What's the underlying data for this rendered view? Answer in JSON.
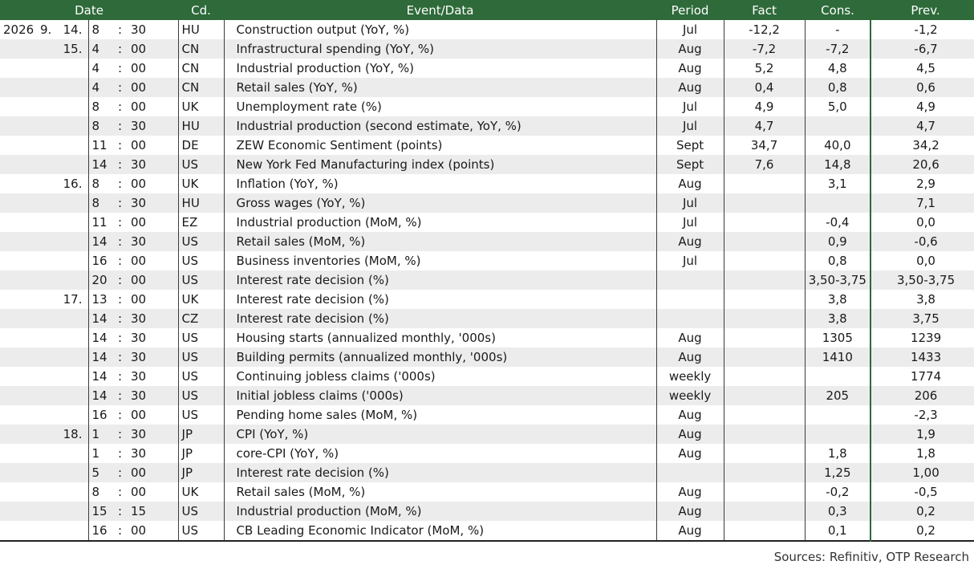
{
  "header": {
    "date": "Date",
    "code": "Cd.",
    "event": "Event/Data",
    "period": "Period",
    "fact": "Fact",
    "cons": "Cons.",
    "prev": "Prev."
  },
  "rows": [
    {
      "year": "2026",
      "month": "9.",
      "day": "14.",
      "hour": "8",
      "colon": ":",
      "minute": "30",
      "code": "HU",
      "event": "Construction output (YoY, %)",
      "period": "Jul",
      "fact": "-12,2",
      "cons": "-",
      "prev": "-1,2"
    },
    {
      "year": "",
      "month": "",
      "day": "15.",
      "hour": "4",
      "colon": ":",
      "minute": "00",
      "code": "CN",
      "event": "Infrastructural spending (YoY, %)",
      "period": "Aug",
      "fact": "-7,2",
      "cons": "-7,2",
      "prev": "-6,7"
    },
    {
      "year": "",
      "month": "",
      "day": "",
      "hour": "4",
      "colon": ":",
      "minute": "00",
      "code": "CN",
      "event": "Industrial production (YoY, %)",
      "period": "Aug",
      "fact": "5,2",
      "cons": "4,8",
      "prev": "4,5"
    },
    {
      "year": "",
      "month": "",
      "day": "",
      "hour": "4",
      "colon": ":",
      "minute": "00",
      "code": "CN",
      "event": "Retail sales (YoY, %)",
      "period": "Aug",
      "fact": "0,4",
      "cons": "0,8",
      "prev": "0,6"
    },
    {
      "year": "",
      "month": "",
      "day": "",
      "hour": "8",
      "colon": ":",
      "minute": "00",
      "code": "UK",
      "event": "Unemployment rate (%)",
      "period": "Jul",
      "fact": "4,9",
      "cons": "5,0",
      "prev": "4,9"
    },
    {
      "year": "",
      "month": "",
      "day": "",
      "hour": "8",
      "colon": ":",
      "minute": "30",
      "code": "HU",
      "event": "Industrial production (second estimate, YoY, %)",
      "period": "Jul",
      "fact": "4,7",
      "cons": "",
      "prev": "4,7"
    },
    {
      "year": "",
      "month": "",
      "day": "",
      "hour": "11",
      "colon": ":",
      "minute": "00",
      "code": "DE",
      "event": "ZEW Economic Sentiment (points)",
      "period": "Sept",
      "fact": "34,7",
      "cons": "40,0",
      "prev": "34,2"
    },
    {
      "year": "",
      "month": "",
      "day": "",
      "hour": "14",
      "colon": ":",
      "minute": "30",
      "code": "US",
      "event": "New York Fed Manufacturing index (points)",
      "period": "Sept",
      "fact": "7,6",
      "cons": "14,8",
      "prev": "20,6"
    },
    {
      "year": "",
      "month": "",
      "day": "16.",
      "hour": "8",
      "colon": ":",
      "minute": "00",
      "code": "UK",
      "event": "Inflation (YoY, %)",
      "period": "Aug",
      "fact": "",
      "cons": "3,1",
      "prev": "2,9"
    },
    {
      "year": "",
      "month": "",
      "day": "",
      "hour": "8",
      "colon": ":",
      "minute": "30",
      "code": "HU",
      "event": "Gross wages (YoY, %)",
      "period": "Jul",
      "fact": "",
      "cons": "",
      "prev": "7,1"
    },
    {
      "year": "",
      "month": "",
      "day": "",
      "hour": "11",
      "colon": ":",
      "minute": "00",
      "code": "EZ",
      "event": "Industrial production (MoM, %)",
      "period": "Jul",
      "fact": "",
      "cons": "-0,4",
      "prev": "0,0"
    },
    {
      "year": "",
      "month": "",
      "day": "",
      "hour": "14",
      "colon": ":",
      "minute": "30",
      "code": "US",
      "event": "Retail sales (MoM, %)",
      "period": "Aug",
      "fact": "",
      "cons": "0,9",
      "prev": "-0,6"
    },
    {
      "year": "",
      "month": "",
      "day": "",
      "hour": "16",
      "colon": ":",
      "minute": "00",
      "code": "US",
      "event": "Business inventories (MoM, %)",
      "period": "Jul",
      "fact": "",
      "cons": "0,8",
      "prev": "0,0"
    },
    {
      "year": "",
      "month": "",
      "day": "",
      "hour": "20",
      "colon": ":",
      "minute": "00",
      "code": "US",
      "event": "Interest rate decision (%)",
      "period": "",
      "fact": "",
      "cons": "3,50-3,75",
      "prev": "3,50-3,75"
    },
    {
      "year": "",
      "month": "",
      "day": "17.",
      "hour": "13",
      "colon": ":",
      "minute": "00",
      "code": "UK",
      "event": "Interest rate decision (%)",
      "period": "",
      "fact": "",
      "cons": "3,8",
      "prev": "3,8"
    },
    {
      "year": "",
      "month": "",
      "day": "",
      "hour": "14",
      "colon": ":",
      "minute": "30",
      "code": "CZ",
      "event": "Interest rate decision (%)",
      "period": "",
      "fact": "",
      "cons": "3,8",
      "prev": "3,75"
    },
    {
      "year": "",
      "month": "",
      "day": "",
      "hour": "14",
      "colon": ":",
      "minute": "30",
      "code": "US",
      "event": "Housing starts (annualized monthly, '000s)",
      "period": "Aug",
      "fact": "",
      "cons": "1305",
      "prev": "1239"
    },
    {
      "year": "",
      "month": "",
      "day": "",
      "hour": "14",
      "colon": ":",
      "minute": "30",
      "code": "US",
      "event": "Building permits (annualized monthly, '000s)",
      "period": "Aug",
      "fact": "",
      "cons": "1410",
      "prev": "1433"
    },
    {
      "year": "",
      "month": "",
      "day": "",
      "hour": "14",
      "colon": ":",
      "minute": "30",
      "code": "US",
      "event": "Continuing jobless claims ('000s)",
      "period": "weekly",
      "fact": "",
      "cons": "",
      "prev": "1774"
    },
    {
      "year": "",
      "month": "",
      "day": "",
      "hour": "14",
      "colon": ":",
      "minute": "30",
      "code": "US",
      "event": "Initial jobless claims ('000s)",
      "period": "weekly",
      "fact": "",
      "cons": "205",
      "prev": "206"
    },
    {
      "year": "",
      "month": "",
      "day": "",
      "hour": "16",
      "colon": ":",
      "minute": "00",
      "code": "US",
      "event": "Pending home sales (MoM, %)",
      "period": "Aug",
      "fact": "",
      "cons": "",
      "prev": "-2,3"
    },
    {
      "year": "",
      "month": "",
      "day": "18.",
      "hour": "1",
      "colon": ":",
      "minute": "30",
      "code": "JP",
      "event": "CPI (YoY, %)",
      "period": "Aug",
      "fact": "",
      "cons": "",
      "prev": "1,9"
    },
    {
      "year": "",
      "month": "",
      "day": "",
      "hour": "1",
      "colon": ":",
      "minute": "30",
      "code": "JP",
      "event": "core-CPI (YoY, %)",
      "period": "Aug",
      "fact": "",
      "cons": "1,8",
      "prev": "1,8"
    },
    {
      "year": "",
      "month": "",
      "day": "",
      "hour": "5",
      "colon": ":",
      "minute": "00",
      "code": "JP",
      "event": "Interest rate decision (%)",
      "period": "",
      "fact": "",
      "cons": "1,25",
      "prev": "1,00"
    },
    {
      "year": "",
      "month": "",
      "day": "",
      "hour": "8",
      "colon": ":",
      "minute": "00",
      "code": "UK",
      "event": "Retail sales (MoM, %)",
      "period": "Aug",
      "fact": "",
      "cons": "-0,2",
      "prev": "-0,5"
    },
    {
      "year": "",
      "month": "",
      "day": "",
      "hour": "15",
      "colon": ":",
      "minute": "15",
      "code": "US",
      "event": "Industrial production (MoM, %)",
      "period": "Aug",
      "fact": "",
      "cons": "0,3",
      "prev": "0,2"
    },
    {
      "year": "",
      "month": "",
      "day": "",
      "hour": "16",
      "colon": ":",
      "minute": "00",
      "code": "US",
      "event": "CB Leading Economic Indicator (MoM, %)",
      "period": "Aug",
      "fact": "",
      "cons": "0,1",
      "prev": "0,2"
    }
  ],
  "sources": "Sources: Refinitiv, OTP Research"
}
